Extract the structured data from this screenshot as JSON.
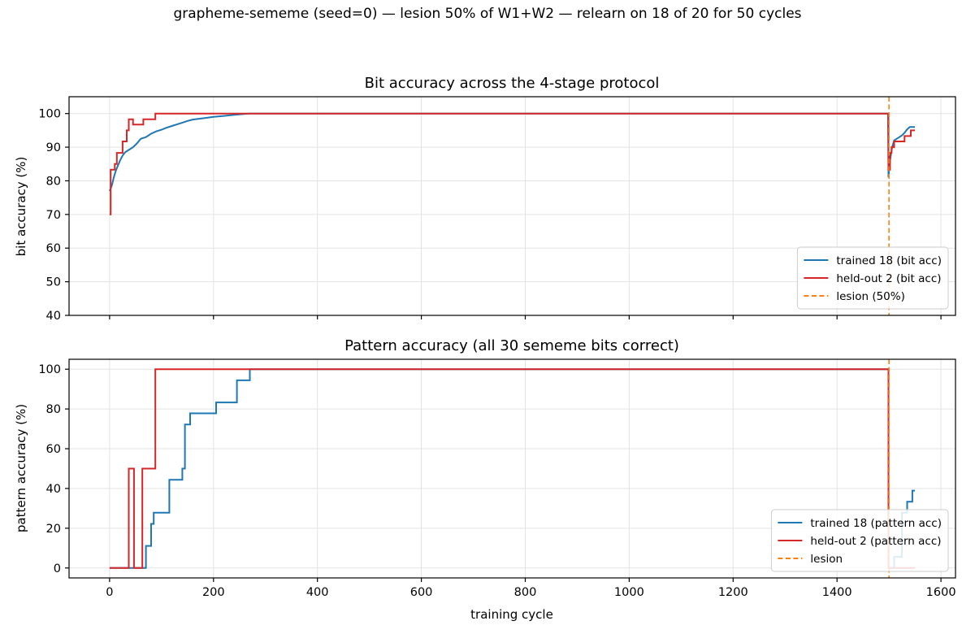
{
  "suptitle": "grapheme-sememe (seed=0)  —  lesion 50% of W1+W2  —  relearn on 18 of 20 for 50 cycles",
  "chart_data": [
    {
      "type": "line",
      "title": "Bit accuracy across the 4-stage protocol",
      "xlabel": "",
      "ylabel": "bit accuracy (%)",
      "xlim": [
        -78,
        1628
      ],
      "ylim": [
        40,
        105
      ],
      "xticks": [
        0,
        200,
        400,
        600,
        800,
        1000,
        1200,
        1400,
        1600
      ],
      "yticks": [
        40,
        50,
        60,
        70,
        80,
        90,
        100
      ],
      "show_xtick_labels": false,
      "grid": true,
      "legend_position": "lower-right",
      "vline": {
        "x": 1500,
        "label": "lesion (50%)",
        "color": "#ff7f0e"
      },
      "series": [
        {
          "name": "trained 18 (bit acc)",
          "color": "#1f77b4",
          "step": false,
          "points": [
            [
              0,
              77
            ],
            [
              3,
              78
            ],
            [
              5,
              79
            ],
            [
              8,
              81
            ],
            [
              12,
              83
            ],
            [
              16,
              84.5
            ],
            [
              20,
              86
            ],
            [
              25,
              87.5
            ],
            [
              30,
              88.5
            ],
            [
              38,
              89.3
            ],
            [
              45,
              90
            ],
            [
              52,
              91
            ],
            [
              60,
              92.5
            ],
            [
              70,
              93
            ],
            [
              80,
              94
            ],
            [
              90,
              94.7
            ],
            [
              100,
              95.2
            ],
            [
              110,
              95.8
            ],
            [
              120,
              96.3
            ],
            [
              130,
              96.8
            ],
            [
              140,
              97.3
            ],
            [
              150,
              97.8
            ],
            [
              160,
              98.2
            ],
            [
              180,
              98.6
            ],
            [
              200,
              99
            ],
            [
              220,
              99.3
            ],
            [
              240,
              99.6
            ],
            [
              260,
              99.9
            ],
            [
              270,
              100
            ],
            [
              1498,
              100
            ],
            [
              1499,
              81
            ],
            [
              1502,
              86
            ],
            [
              1506,
              90
            ],
            [
              1510,
              92
            ],
            [
              1515,
              92.5
            ],
            [
              1520,
              93
            ],
            [
              1525,
              93.5
            ],
            [
              1530,
              94.3
            ],
            [
              1535,
              95.3
            ],
            [
              1540,
              96
            ],
            [
              1545,
              96
            ],
            [
              1550,
              96
            ]
          ]
        },
        {
          "name": "held-out 2 (bit acc)",
          "color": "#d62728",
          "step": true,
          "points": [
            [
              0,
              70
            ],
            [
              2,
              83.3
            ],
            [
              10,
              85
            ],
            [
              14,
              88.3
            ],
            [
              25,
              91.7
            ],
            [
              33,
              95
            ],
            [
              37,
              98.3
            ],
            [
              45,
              96.7
            ],
            [
              65,
              98.3
            ],
            [
              88,
              100
            ],
            [
              1499,
              83.3
            ],
            [
              1502,
              88.3
            ],
            [
              1505,
              90
            ],
            [
              1510,
              91.7
            ],
            [
              1530,
              93.3
            ],
            [
              1542,
              95
            ],
            [
              1550,
              95
            ]
          ]
        }
      ]
    },
    {
      "type": "line",
      "title": "Pattern accuracy (all 30 sememe bits correct)",
      "xlabel": "training cycle",
      "ylabel": "pattern accuracy (%)",
      "xlim": [
        -78,
        1628
      ],
      "ylim": [
        -5,
        105
      ],
      "xticks": [
        0,
        200,
        400,
        600,
        800,
        1000,
        1200,
        1400,
        1600
      ],
      "yticks": [
        0,
        20,
        40,
        60,
        80,
        100
      ],
      "show_xtick_labels": true,
      "grid": true,
      "legend_position": "lower-right",
      "vline": {
        "x": 1500,
        "label": "lesion",
        "color": "#ff7f0e"
      },
      "series": [
        {
          "name": "trained 18 (pattern acc)",
          "color": "#1f77b4",
          "step": true,
          "points": [
            [
              0,
              0
            ],
            [
              70,
              11.1
            ],
            [
              80,
              22.2
            ],
            [
              85,
              27.8
            ],
            [
              115,
              44.4
            ],
            [
              140,
              50
            ],
            [
              145,
              72.2
            ],
            [
              155,
              77.8
            ],
            [
              205,
              83.3
            ],
            [
              245,
              94.4
            ],
            [
              270,
              100
            ],
            [
              1499,
              0
            ],
            [
              1510,
              5.6
            ],
            [
              1525,
              27.8
            ],
            [
              1535,
              33.3
            ],
            [
              1545,
              38.9
            ],
            [
              1550,
              38.9
            ]
          ]
        },
        {
          "name": "held-out 2 (pattern acc)",
          "color": "#d62728",
          "step": true,
          "points": [
            [
              0,
              0
            ],
            [
              37,
              50
            ],
            [
              47,
              0
            ],
            [
              63,
              50
            ],
            [
              88,
              100
            ],
            [
              1499,
              0
            ],
            [
              1550,
              0
            ]
          ]
        }
      ]
    }
  ]
}
